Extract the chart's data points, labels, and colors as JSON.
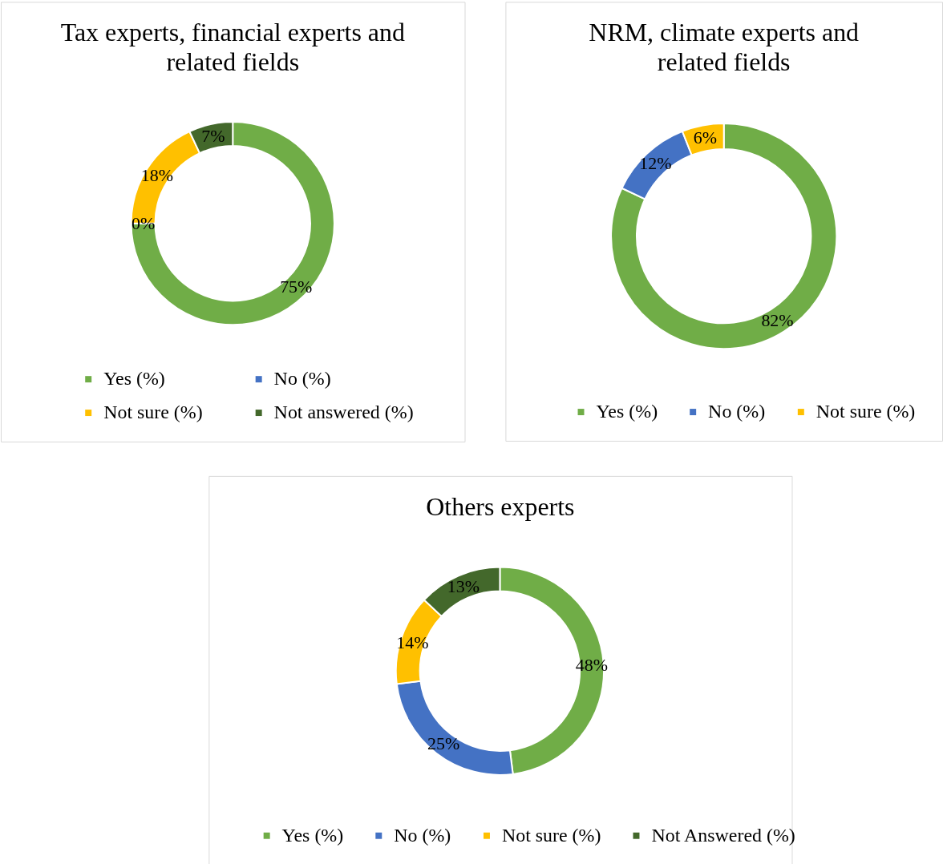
{
  "chart_data": [
    {
      "type": "donut",
      "title": "Tax experts, financial experts and related fields",
      "categories": [
        "Yes (%)",
        "No (%)",
        "Not sure (%)",
        "Not answered (%)"
      ],
      "values": [
        75,
        0,
        18,
        7
      ],
      "colors": [
        "#70ad47",
        "#4472c4",
        "#ffc000",
        "#43682b"
      ],
      "value_labels": [
        "75%",
        "0%",
        "18%",
        "7%"
      ],
      "legend": "bottom"
    },
    {
      "type": "donut",
      "title": "NRM, climate experts and related fields",
      "categories": [
        "Yes (%)",
        "No (%)",
        "Not sure (%)"
      ],
      "values": [
        82,
        12,
        6
      ],
      "colors": [
        "#70ad47",
        "#4472c4",
        "#ffc000"
      ],
      "value_labels": [
        "82%",
        "12%",
        "6%"
      ],
      "legend": "bottom"
    },
    {
      "type": "donut",
      "title": "Others experts",
      "categories": [
        "Yes (%)",
        "No (%)",
        "Not sure (%)",
        "Not Answered (%)"
      ],
      "values": [
        48,
        25,
        14,
        13
      ],
      "colors": [
        "#70ad47",
        "#4472c4",
        "#ffc000",
        "#43682b"
      ],
      "value_labels": [
        "48%",
        "25%",
        "14%",
        "13%"
      ],
      "legend": "bottom"
    }
  ]
}
